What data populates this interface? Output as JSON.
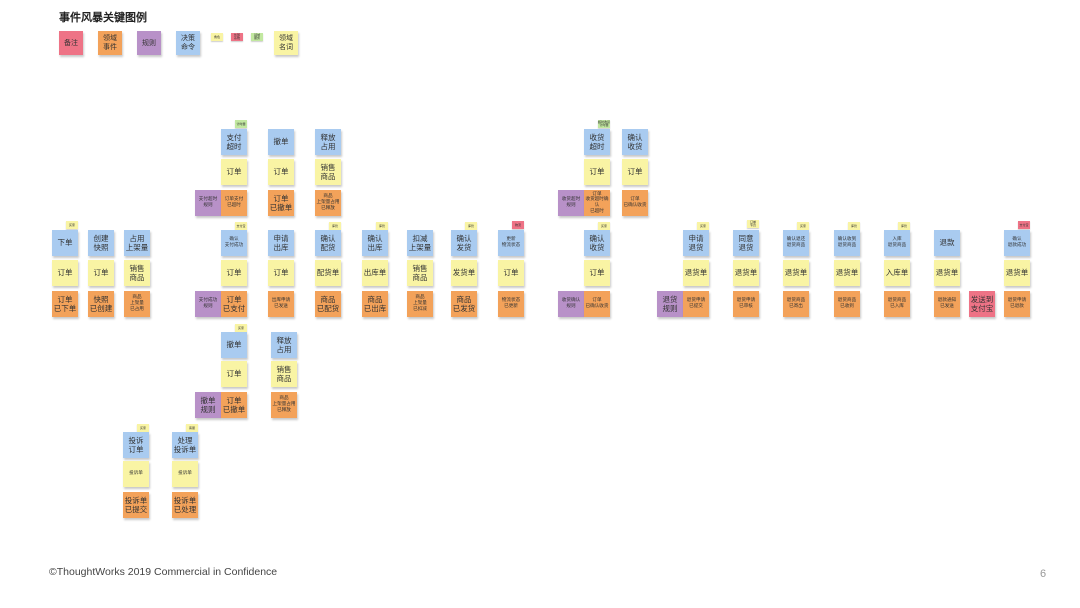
{
  "title": "事件风暴关键图例",
  "legend": {
    "note": "备注",
    "domain_event": "领域\n事件",
    "rule": "规则",
    "command": "决策\n命令",
    "role": "角色",
    "external_system": "外部\n系统",
    "domain_service": "领域\n服务",
    "domain_noun": "领域\n名词"
  },
  "flow": {
    "order": {
      "role": "买家",
      "commands": {
        "place": "下单",
        "create_snapshot": "创建\n快照",
        "occupy_stock": "占用\n上架量"
      },
      "nouns": {
        "order_1": "订单",
        "order_2": "订单",
        "sku": "销售\n商品"
      },
      "events": {
        "order_placed": "订单\n已下单",
        "snapshot_created": "快照\n已创建",
        "stock_occupied": "商品\n上架量\n已占用"
      }
    },
    "timeout": {
      "role": "计时器",
      "commands": {
        "pay_timeout": "支付\n超时",
        "cancel": "撤单",
        "release": "释放\n占用"
      },
      "rule": "支付超时\n规则",
      "nouns": {
        "order_1": "订单",
        "order_2": "订单",
        "sku": "销售\n商品"
      },
      "events": {
        "pay_timeout": "订单支付\n已超时",
        "cancelled": "订单\n已撤单",
        "released": "商品\n上架量占用\n已释放"
      }
    },
    "payment": {
      "role": "支付宝",
      "command": "确认\n支付成功",
      "rule": "支付成功\n规则",
      "noun": "订单",
      "event": "订单\n已支付"
    },
    "outbound": {
      "command": "申请\n出库",
      "noun": "订单",
      "event": "出库申请\n已发送"
    },
    "dispatch": {
      "role": "库管",
      "command": "确认\n配货",
      "noun": "配货单",
      "event": "商品\n已配货"
    },
    "warehouse_out": {
      "role": "库管",
      "command": "确认\n出库",
      "noun": "出库单",
      "event": "商品\n已出库"
    },
    "deduct": {
      "command": "扣减\n上架量",
      "noun": "销售\n商品",
      "event": "商品\n上架量\n已扣减"
    },
    "ship": {
      "role": "库管",
      "command": "确认\n发货",
      "noun": "发货单",
      "event": "商品\n已发货"
    },
    "logistics": {
      "external": "物流",
      "command": "更新\n物流状态",
      "noun": "订单",
      "event": "物流状态\n已更新"
    },
    "user_cancel": {
      "role": "买家",
      "command": "撤单",
      "noun": "订单",
      "rule": "撤单\n规则",
      "event": "订单\n已撤单",
      "release_command": "释放\n占用",
      "release_noun": "销售\n商品",
      "release_event": "商品\n上架量占用\n已释放"
    },
    "receive_timeout": {
      "role": "超时收货\n计时器",
      "command": "收货\n超时",
      "noun": "订单",
      "rule": "收货超时\n规则",
      "event": "订单\n收货超时确认\n已超时"
    },
    "receive": {
      "command": "确认\n收货",
      "noun": "订单",
      "event": "订单\n已确认收货"
    },
    "receive_confirm": {
      "role": "买家",
      "command": "确认\n收货",
      "noun": "订单",
      "rule": "收货确认\n规则",
      "event": "订单\n已确认收货"
    },
    "complaint": {
      "role": "买家",
      "command": "投诉\n订单",
      "noun": "投诉单",
      "event": "投诉单\n已提交"
    },
    "handle_complaint": {
      "role": "客服",
      "command": "处理\n投诉单",
      "noun": "投诉单",
      "event": "投诉单\n已处理"
    },
    "returns": {
      "rule": "退货\n规则",
      "apply": {
        "role": "买家",
        "command": "申请\n退货",
        "noun": "退货单",
        "event": "退货申请\n已提交"
      },
      "approve": {
        "role": "订单\n专员",
        "command": "同意\n退货",
        "noun": "退货单",
        "event": "退货申请\n已审核"
      },
      "send_back": {
        "role": "买家",
        "command": "确认退还\n退货商品",
        "noun": "退货单",
        "event": "退货商品\n已寄出"
      },
      "receive_back": {
        "role": "库管",
        "command": "确认收到\n退货商品",
        "noun": "退货单",
        "event": "退货商品\n已收到"
      },
      "restock": {
        "role": "库管",
        "command": "入库\n退货商品",
        "noun": "入库单",
        "event": "退货商品\n已入库"
      },
      "refund": {
        "command": "退款",
        "noun": "退货单",
        "event": "退款通知\n已发送"
      },
      "alipay": {
        "external": "发送到\n支付宝"
      },
      "refund_ok": {
        "external": "支付宝",
        "command": "确认\n退款成功",
        "noun": "退货单",
        "event": "退货申请\n已退款"
      }
    }
  },
  "footer": {
    "copyright": "©ThoughtWorks 2019 Commercial in Confidence",
    "page": "6"
  }
}
